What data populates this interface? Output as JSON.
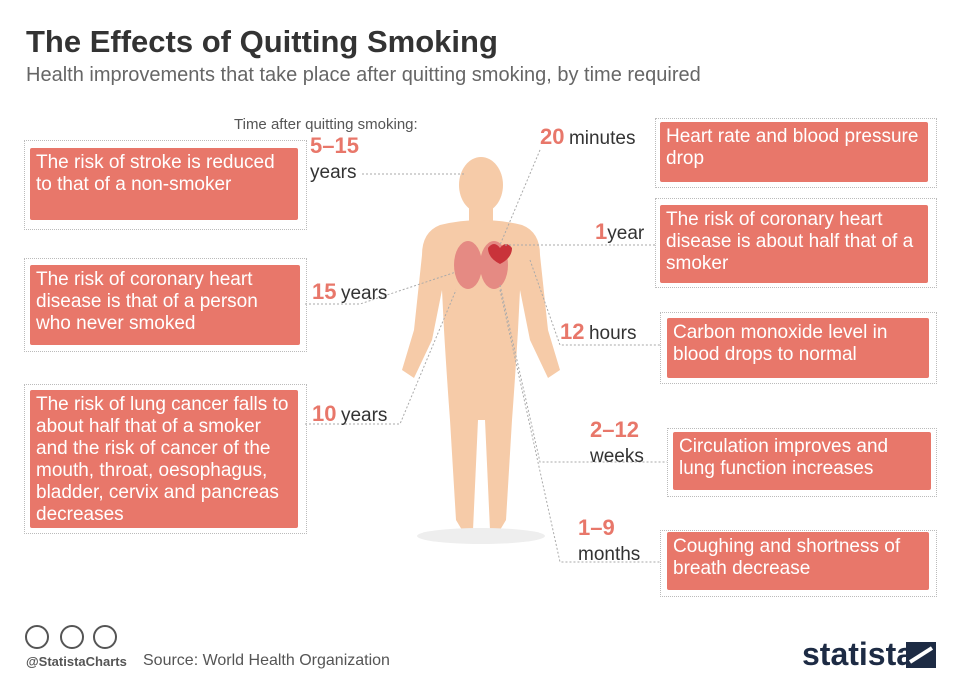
{
  "header": {
    "title": "The Effects of Quitting Smoking",
    "subtitle": "Health improvements that take place after quitting smoking, by time required"
  },
  "time_label": "Time after quitting smoking:",
  "effects": [
    {
      "time": "5–15",
      "unit": "years",
      "text": "The risk of stroke is reduced to that of a non-smoker"
    },
    {
      "time": "15",
      "unit": "years",
      "text": "The risk of coronary heart disease is that of a person who never smoked"
    },
    {
      "time": "10",
      "unit": "years",
      "text": "The risk of lung cancer falls to about half that of a smoker and the risk of cancer of the mouth, throat, oesophagus, bladder, cervix and pancreas decreases"
    },
    {
      "time": "20",
      "unit": "minutes",
      "text": "Heart rate and blood pressure drop"
    },
    {
      "time": "1",
      "unit": "year",
      "text": "The risk of coronary heart disease is about half that of a smoker"
    },
    {
      "time": "12",
      "unit": "hours",
      "text": "Carbon monoxide level in blood drops to normal"
    },
    {
      "time": "2–12",
      "unit": "weeks",
      "text": "Circulation improves and lung function increases"
    },
    {
      "time": "1–9",
      "unit": "months",
      "text": "Coughing and shortness of breath decrease"
    }
  ],
  "footer": {
    "handle": "@StatistaCharts",
    "source": "Source: World Health Organization",
    "brand": "statista"
  }
}
